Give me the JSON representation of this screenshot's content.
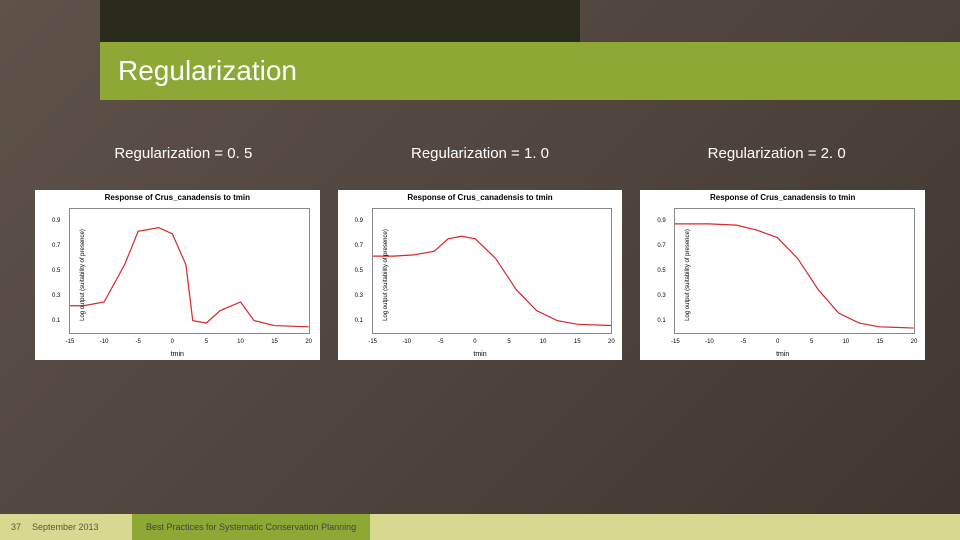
{
  "slide": {
    "title": "Regularization",
    "background_gradient": [
      "#5e5249",
      "#4f453d",
      "#3f372f"
    ],
    "title_bar_color": "#8ea836",
    "accent_block_color": "#2b2b1c"
  },
  "charts": [
    {
      "label": "Regularization = 0. 5",
      "type": "line",
      "title": "Response of Crus_canadensis to tmin",
      "ylabel": "Log output (suitability of presence)",
      "xlabel": "tmin",
      "line_color": "#d62728",
      "line_width": 1.2,
      "background_color": "#ffffff",
      "border_color": "#888888",
      "xlim": [
        -15,
        20
      ],
      "ylim": [
        0,
        1.0
      ],
      "xticks": [
        -15,
        -10,
        -5,
        0,
        5,
        10,
        15,
        20
      ],
      "yticks": [
        0.1,
        0.3,
        0.5,
        0.7,
        0.9
      ],
      "x": [
        -15,
        -13,
        -10,
        -7,
        -5,
        -2,
        0,
        2,
        3,
        5,
        7,
        10,
        12,
        15,
        20
      ],
      "y": [
        0.22,
        0.22,
        0.25,
        0.55,
        0.82,
        0.85,
        0.8,
        0.55,
        0.1,
        0.08,
        0.18,
        0.25,
        0.1,
        0.06,
        0.05
      ]
    },
    {
      "label": "Regularization = 1. 0",
      "type": "line",
      "title": "Response of Crus_canadensis to tmin",
      "ylabel": "Log output (suitability of presence)",
      "xlabel": "tmin",
      "line_color": "#d62728",
      "line_width": 1.2,
      "background_color": "#ffffff",
      "border_color": "#888888",
      "xlim": [
        -15,
        20
      ],
      "ylim": [
        0,
        1.0
      ],
      "xticks": [
        -15,
        -10,
        -5,
        0,
        5,
        10,
        15,
        20
      ],
      "yticks": [
        0.1,
        0.3,
        0.5,
        0.7,
        0.9
      ],
      "x": [
        -15,
        -12,
        -9,
        -6,
        -4,
        -2,
        0,
        3,
        6,
        9,
        12,
        15,
        20
      ],
      "y": [
        0.62,
        0.62,
        0.63,
        0.66,
        0.76,
        0.78,
        0.76,
        0.6,
        0.35,
        0.18,
        0.1,
        0.07,
        0.06
      ]
    },
    {
      "label": "Regularization = 2. 0",
      "type": "line",
      "title": "Response of Crus_canadensis to tmin",
      "ylabel": "Log output (suitability of presence)",
      "xlabel": "tmin",
      "line_color": "#d62728",
      "line_width": 1.2,
      "background_color": "#ffffff",
      "border_color": "#888888",
      "xlim": [
        -15,
        20
      ],
      "ylim": [
        0,
        1.0
      ],
      "xticks": [
        -15,
        -10,
        -5,
        0,
        5,
        10,
        15,
        20
      ],
      "yticks": [
        0.1,
        0.3,
        0.5,
        0.7,
        0.9
      ],
      "x": [
        -15,
        -10,
        -6,
        -3,
        0,
        3,
        6,
        9,
        12,
        15,
        20
      ],
      "y": [
        0.88,
        0.88,
        0.87,
        0.83,
        0.77,
        0.6,
        0.35,
        0.16,
        0.08,
        0.05,
        0.04
      ]
    }
  ],
  "footer": {
    "page": "37",
    "date": "September 2013",
    "title": "Best Practices for Systematic Conservation Planning",
    "bar_color": "#d6d98f",
    "block_color": "#8ea836"
  }
}
